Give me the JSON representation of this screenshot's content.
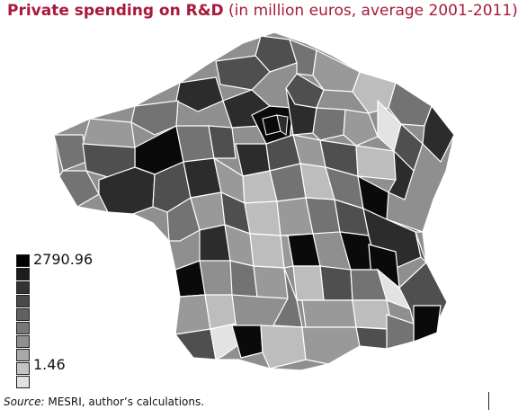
{
  "title": {
    "bold": "Private spending on R&D",
    "rest": " (in million euros, average 2001-2011)"
  },
  "legend": {
    "max_label": "2790.96",
    "min_label": "1.46",
    "colors": [
      "#000000",
      "#1c1c1c",
      "#333333",
      "#4a4a4a",
      "#616161",
      "#787878",
      "#8f8f8f",
      "#a8a8a8",
      "#c4c4c4",
      "#e2e2e2"
    ]
  },
  "map_colors": {
    "very_dark": "#0a0a0a",
    "dark": "#2c2c2c",
    "mid_dark": "#4f4f4f",
    "mid": "#737373",
    "light_mid": "#999999",
    "light": "#bdbdbd",
    "very_light": "#e3e3e3"
  },
  "source": {
    "label": "Source:",
    "text": " MESRI, author’s calculations."
  }
}
